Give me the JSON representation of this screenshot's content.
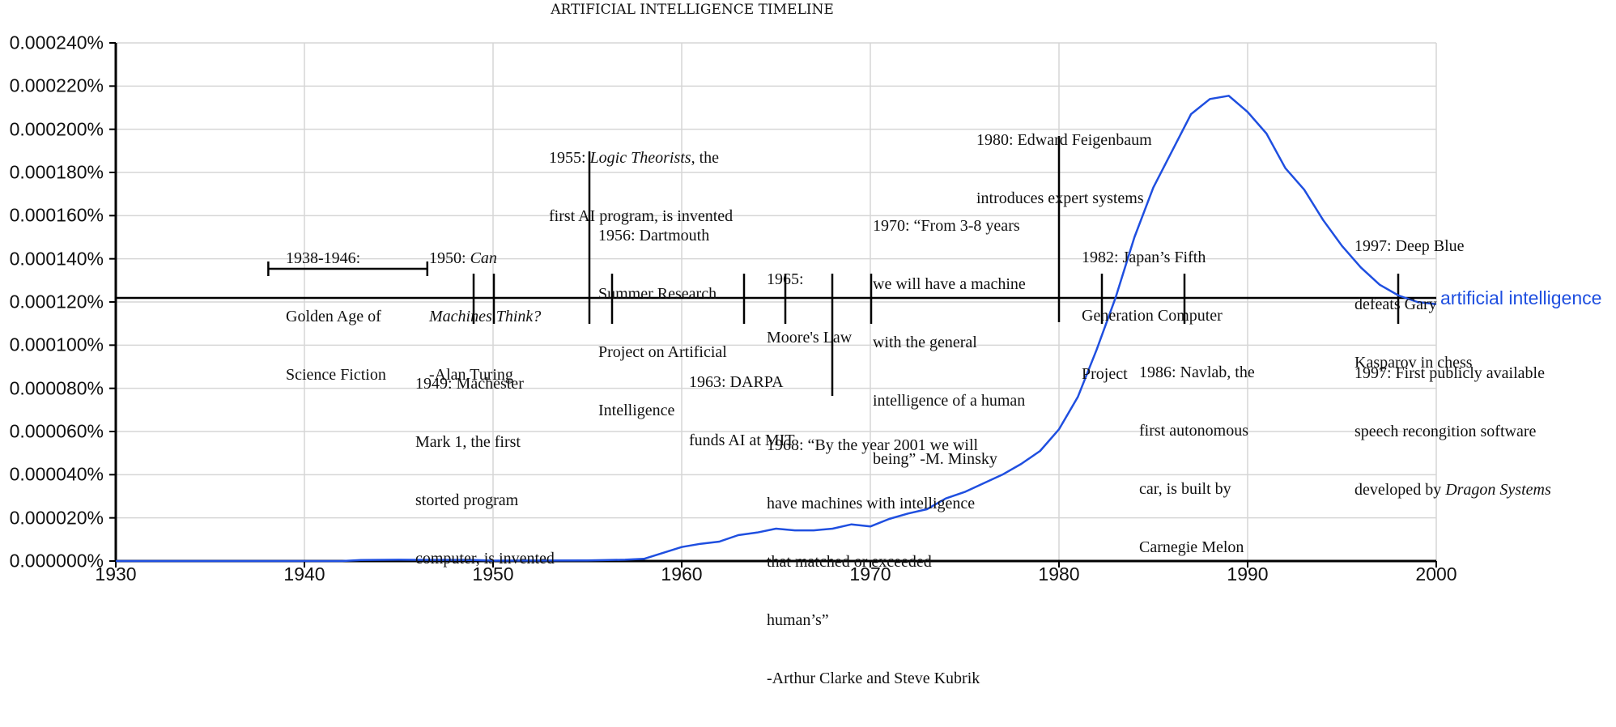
{
  "chart_data": {
    "type": "line",
    "title": "ARTIFICIAL INTELLIGENCE TIMELINE",
    "xlabel": "",
    "ylabel": "",
    "xlim": [
      1930,
      2000
    ],
    "ylim": [
      0.0,
      0.00024
    ],
    "grid": true,
    "x_ticks": [
      "1930",
      "1940",
      "1950",
      "1960",
      "1970",
      "1980",
      "1990",
      "2000"
    ],
    "y_ticks": [
      "0.000000%",
      "0.000020%",
      "0.000040%",
      "0.000060%",
      "0.000080%",
      "0.000100%",
      "0.000120%",
      "0.000140%",
      "0.000160%",
      "0.000180%",
      "0.000200%",
      "0.000220%",
      "0.000240%"
    ],
    "series": [
      {
        "name": "artificial intelligence",
        "color": "#1f4fe0",
        "x": [
          1930,
          1935,
          1940,
          1942,
          1943,
          1945,
          1949,
          1950,
          1955,
          1957,
          1958,
          1960,
          1961,
          1962,
          1963,
          1964,
          1965,
          1966,
          1967,
          1968,
          1969,
          1970,
          1971,
          1972,
          1973,
          1974,
          1975,
          1976,
          1977,
          1978,
          1979,
          1980,
          1981,
          1982,
          1983,
          1984,
          1985,
          1986,
          1987,
          1988,
          1989,
          1990,
          1991,
          1992,
          1993,
          1994,
          1995,
          1996,
          1997,
          1998,
          1999,
          2000
        ],
        "values_percent_e6": [
          0,
          0,
          0,
          0,
          0.5,
          0.6,
          0.5,
          0.2,
          0.3,
          0.6,
          1.0,
          6.5,
          8.0,
          9.0,
          12.0,
          13.2,
          15.0,
          14.2,
          14.2,
          15.0,
          17.0,
          16.0,
          19.5,
          22.0,
          24.0,
          29.0,
          32.0,
          36.0,
          40.0,
          45.0,
          51.0,
          61.0,
          76.0,
          98.0,
          122.0,
          150.0,
          173.0,
          190.0,
          207.0,
          214.0,
          215.5,
          208.0,
          198.0,
          182.0,
          172.0,
          158.0,
          146.0,
          136.0,
          128.0,
          123.0,
          120.0,
          119.0
        ]
      }
    ],
    "timeline": {
      "baseline_value_percent_e6": 122,
      "color": "#000000",
      "events": [
        {
          "year_start": 1938,
          "year_end": 1946,
          "kind": "range",
          "text": "1938-1946:\nGolden Age of\nScience Fiction"
        },
        {
          "year": 1949,
          "kind": "tick-down",
          "text": "1949: Machester\nMark 1, the first\nstorted program\ncomputer, is invented"
        },
        {
          "year": 1950,
          "kind": "tick-up",
          "text": "1950: Can\nMachines Think?\n-Alan Turing"
        },
        {
          "year": 1955,
          "kind": "tick-long-up",
          "text": "1955: Logic Theorists, the\nfirst AI program, is invented"
        },
        {
          "year": 1956,
          "kind": "tick-up",
          "text": "1956: Dartmouth\nSummer Research\nProject on Artificial\nIntelligence"
        },
        {
          "year": 1963,
          "kind": "tick-down",
          "text": "1963: DARPA\nfunds AI at MIT"
        },
        {
          "year": 1965,
          "kind": "tick-up",
          "text": "1965:\nMoore's Law"
        },
        {
          "year": 1968,
          "kind": "tick-long-down",
          "text": "1968: “By the year 2001 we will\nhave machines with intelligence\nthat matched or exceeded\nhuman’s”\n-Arthur Clarke and Steve Kubrik"
        },
        {
          "year": 1970,
          "kind": "tick-up",
          "text": "1970: “From 3-8 years\nwe will have a machine\nwith the general\nintelligence of a human\nbeing” -M. Minsky"
        },
        {
          "year": 1980,
          "kind": "tick-long-up",
          "text": "1980: Edward Feigenbaum\nintroduces expert systems"
        },
        {
          "year": 1982,
          "kind": "tick-up",
          "text": "1982: Japan’s Fifth\nGeneration Computer\nProject"
        },
        {
          "year": 1986,
          "kind": "tick-down",
          "text": "1986: Navlab, the\nfirst autonomous\ncar, is built by\nCarnegie Melon"
        },
        {
          "year": 1997,
          "kind": "tick-up",
          "text": "1997: Deep Blue\ndefeats Gary\nKasparov in chess"
        },
        {
          "year": 1997,
          "kind": "tick-down",
          "text": "1997: First publicly available\nspeech recongition software\ndeveloped by Dragon Systems"
        }
      ]
    },
    "legend": {
      "position": "right-inline",
      "entries": [
        "artificial intelligence"
      ]
    }
  },
  "labels": {
    "title": "ARTIFICIAL INTELLIGENCE TIMELINE",
    "series_label": "artificial intelligence",
    "y_ticks": [
      "0.000000%",
      "0.000020%",
      "0.000040%",
      "0.000060%",
      "0.000080%",
      "0.000100%",
      "0.000120%",
      "0.000140%",
      "0.000160%",
      "0.000180%",
      "0.000200%",
      "0.000220%",
      "0.000240%"
    ],
    "x_ticks": [
      "1930",
      "1940",
      "1950",
      "1960",
      "1970",
      "1980",
      "1990",
      "2000"
    ],
    "ann": {
      "golden_age": {
        "l1": "1938-1946:",
        "l2": "Golden Age of",
        "l3": "Science Fiction"
      },
      "turing": {
        "l1a": "1950: ",
        "l1b": "Can",
        "l2": "Machines Think?",
        "l3": "-Alan Turing"
      },
      "manchester": {
        "l1": "1949: Machester",
        "l2": "Mark 1, the first",
        "l3": "storted program",
        "l4": "computer, is invented"
      },
      "logic": {
        "l1a": "1955: ",
        "l1b": "Logic Theorists",
        "l1c": ", the",
        "l2": "first AI program, is invented"
      },
      "dartmouth": {
        "l1": "1956: Dartmouth",
        "l2": "Summer Research",
        "l3": "Project on Artificial",
        "l4": "Intelligence"
      },
      "darpa": {
        "l1": "1963: DARPA",
        "l2": "funds AI at MIT"
      },
      "moore": {
        "l1": "1965:",
        "l2": "Moore's Law"
      },
      "clarke": {
        "l1": "1968: “By the year 2001 we will",
        "l2": "have machines with intelligence",
        "l3": "that matched or exceeded",
        "l4": "human’s”",
        "l5": "-Arthur Clarke and Steve Kubrik"
      },
      "minsky": {
        "l1": "1970: “From 3-8 years",
        "l2": "we will have a machine",
        "l3": "with the general",
        "l4": "intelligence of a human",
        "l5": "being” -M. Minsky"
      },
      "feigenbaum": {
        "l1": "1980: Edward Feigenbaum",
        "l2": "introduces expert systems"
      },
      "japan": {
        "l1": "1982: Japan’s Fifth",
        "l2": "Generation Computer",
        "l3": "Project"
      },
      "navlab": {
        "l1": "1986: Navlab, the",
        "l2": "first autonomous",
        "l3": "car, is built by",
        "l4": "Carnegie Melon"
      },
      "deepblue": {
        "l1": "1997: Deep Blue",
        "l2": "defeats Gary",
        "l3": "Kasparov in chess"
      },
      "dragon": {
        "l1": "1997: First publicly available",
        "l2": "speech recongition software",
        "l3a": "developed by ",
        "l3b": "Dragon Systems"
      }
    }
  },
  "colors": {
    "series": "#1f4fe0",
    "grid": "#d6d6d6",
    "axis": "#000000",
    "text": "#111111"
  }
}
